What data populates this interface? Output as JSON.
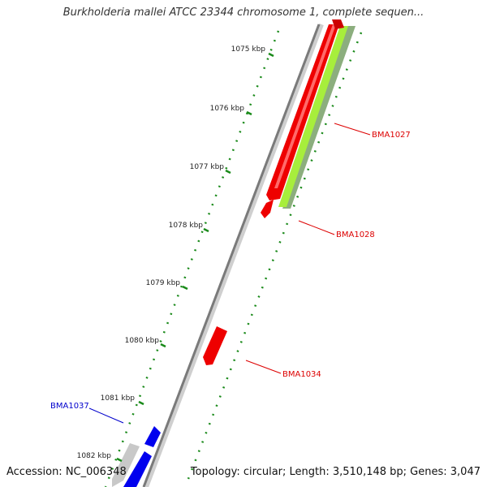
{
  "title": "Burkholderia mallei ATCC 23344 chromosome 1, complete sequen...",
  "accession": "Accession: NC_006348",
  "topology": "Topology: circular; Length: 3,510,148 bp; Genes: 3,047",
  "scale_ticks": [
    "1075 kbp",
    "1076 kbp",
    "1077 kbp",
    "1078 kbp",
    "1079 kbp",
    "1080 kbp",
    "1081 kbp",
    "1082 kbp"
  ],
  "gene_labels": [
    {
      "text": "BMA1027",
      "color": "#dd0000"
    },
    {
      "text": "BMA1028",
      "color": "#dd0000"
    },
    {
      "text": "BMA1034",
      "color": "#dd0000"
    },
    {
      "text": "BMA1037",
      "color": "#0000cc"
    }
  ],
  "colors": {
    "backbone": "#808080",
    "forward_gene": "#ee0000",
    "reverse_gene": "#0000ee",
    "gc_track": "#99ee33",
    "gc_track_dark": "#88aa77",
    "tick_marks": "#1a8a1a",
    "pseudo_gene": "#cccccc"
  }
}
